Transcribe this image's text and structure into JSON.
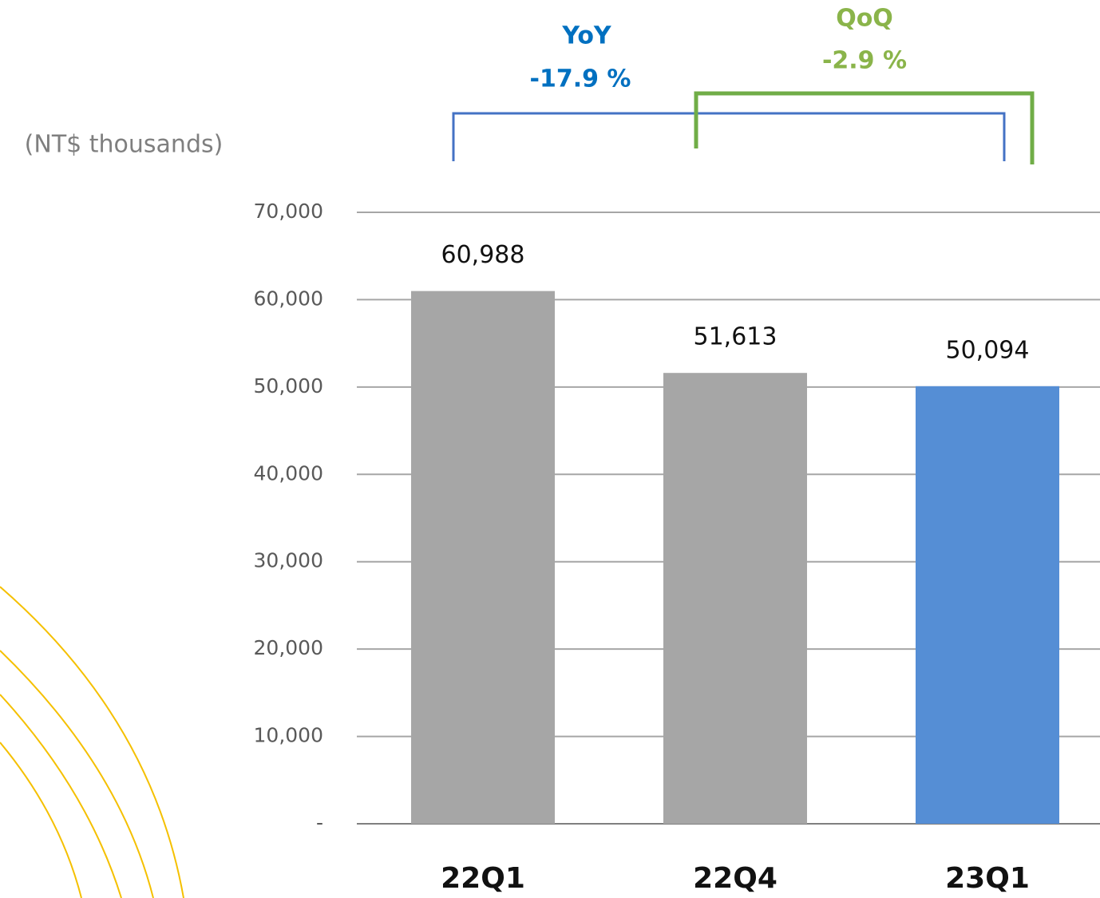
{
  "chart_data": {
    "type": "bar",
    "axis_label": "(NT$ thousands)",
    "categories": [
      "22Q1",
      "22Q4",
      "23Q1"
    ],
    "values": [
      60988,
      51613,
      50094
    ],
    "value_labels": [
      "60,988",
      "51,613",
      "50,094"
    ],
    "colors": [
      "#a6a6a6",
      "#a6a6a6",
      "#558ed5"
    ],
    "ylim": [
      0,
      70000
    ],
    "yticks": [
      {
        "value": 0,
        "label": "-"
      },
      {
        "value": 10000,
        "label": "10,000"
      },
      {
        "value": 20000,
        "label": "20,000"
      },
      {
        "value": 30000,
        "label": "30,000"
      },
      {
        "value": 40000,
        "label": "40,000"
      },
      {
        "value": 50000,
        "label": "50,000"
      },
      {
        "value": 60000,
        "label": "60,000"
      },
      {
        "value": 70000,
        "label": "70,000"
      }
    ],
    "grid": true,
    "annotations": [
      {
        "title": "YoY",
        "text": "-17.9 %",
        "color": "#0070c0"
      },
      {
        "title": "QoQ",
        "text": "-2.9 %",
        "color": "#8ab44a"
      }
    ]
  }
}
